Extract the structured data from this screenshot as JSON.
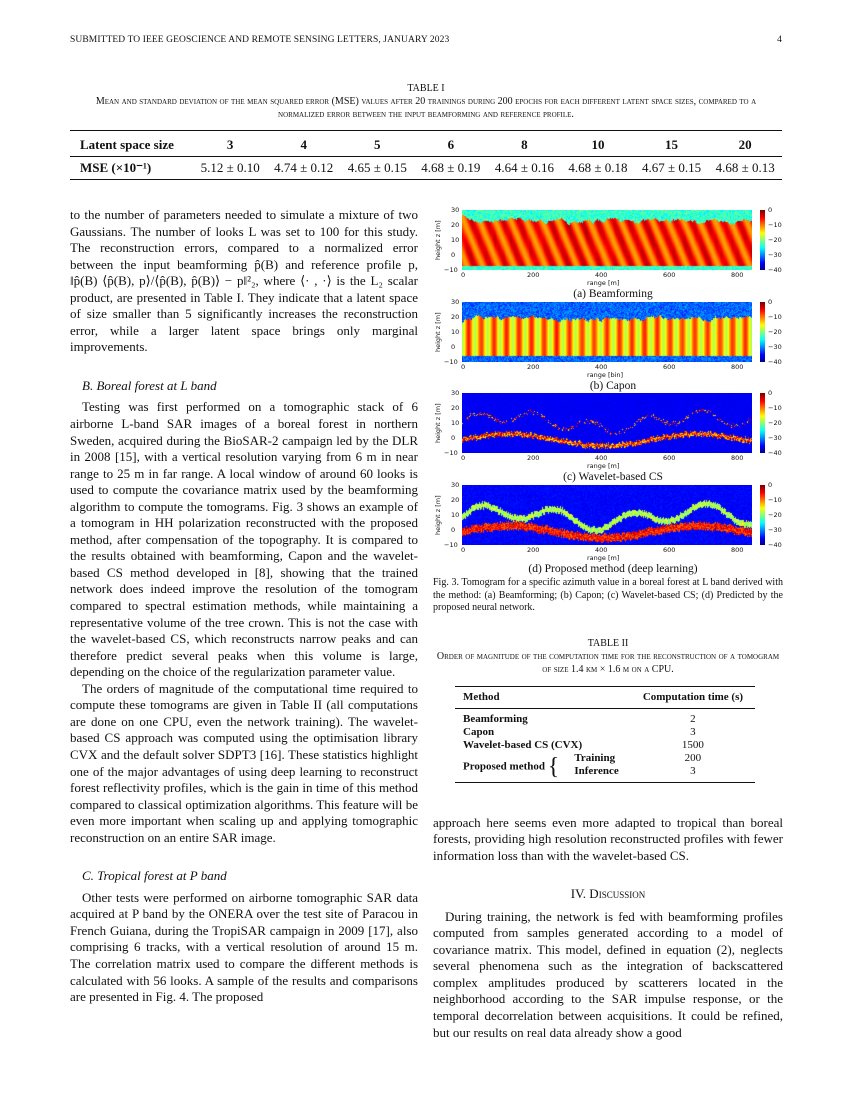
{
  "header": {
    "journal": "SUBMITTED TO IEEE GEOSCIENCE AND REMOTE SENSING LETTERS, JANUARY 2023",
    "page_number": "4"
  },
  "table1": {
    "label": "TABLE I",
    "caption": "Mean and standard deviation of the mean squared error (MSE) values after 20 trainings during 200 epochs for each different latent space sizes, compared to a normalized error between the input beamforming and reference profile.",
    "header": [
      "Latent space size",
      "3",
      "4",
      "5",
      "6",
      "8",
      "10",
      "15",
      "20"
    ],
    "row": [
      "MSE (×10⁻¹)",
      "5.12 ± 0.10",
      "4.74 ± 0.12",
      "4.65 ± 0.15",
      "4.68 ± 0.19",
      "4.64 ± 0.16",
      "4.68 ± 0.18",
      "4.67 ± 0.15",
      "4.68 ± 0.13"
    ]
  },
  "left": {
    "p1": "to the number of parameters needed to simulate a mixture of two Gaussians. The number of looks L was set to 100 for this study. The reconstruction errors, compared to a normalized error between the input beamforming p̂(B) and reference profile p, ‖p̂(B) ⟨p̂(B), p⟩/⟨p̂(B), p̂(B)⟩ − p‖²₂, where ⟨· , ·⟩ is the L₂ scalar product, are presented in Table I. They indicate that a latent space of size smaller than 5 significantly increases the reconstruction error, while a larger latent space brings only marginal improvements.",
    "secB": "B. Boreal forest at L band",
    "p2": "Testing was first performed on a tomographic stack of 6 airborne L-band SAR images of a boreal forest in northern Sweden, acquired during the BioSAR-2 campaign led by the DLR in 2008 [15], with a vertical resolution varying from 6 m in near range to 25 m in far range. A local window of around 60 looks is used to compute the covariance matrix used by the beamforming algorithm to compute the tomograms. Fig. 3 shows an example of a tomogram in HH polarization reconstructed with the proposed method, after compensation of the topography. It is compared to the results obtained with beamforming, Capon and the wavelet-based CS method developed in [8], showing that the trained network does indeed improve the resolution of the tomogram compared to spectral estimation methods, while maintaining a representative volume of the tree crown. This is not the case with the wavelet-based CS, which reconstructs narrow peaks and can therefore predict several peaks when this volume is large, depending on the choice of the regularization parameter value.",
    "p3": "The orders of magnitude of the computational time required to compute these tomograms are given in Table II (all computations are done on one CPU, even the network training). The wavelet-based CS approach was computed using the optimisation library CVX and the default solver SDPT3 [16]. These statistics highlight one of the major advantages of using deep learning to reconstruct forest reflectivity profiles, which is the gain in time of this method compared to classical optimization algorithms. This feature will be even more important when scaling up and applying tomographic reconstruction on an entire SAR image.",
    "secC": "C. Tropical forest at P band",
    "p4": "Other tests were performed on airborne tomographic SAR data acquired at P band by the ONERA over the test site of Paracou in French Guiana, during the TropiSAR campaign in 2009 [17], also comprising 6 tracks, with a vertical resolution of around 15 m. The correlation matrix used to compare the different methods is calculated with 56 looks. A sample of the results and comparisons are presented in Fig. 4. The proposed"
  },
  "figure": {
    "ylabel": "height z [m]",
    "yticks": [
      "30",
      "20",
      "10",
      "0",
      "−10"
    ],
    "xticks": [
      "0",
      "200",
      "400",
      "600",
      "800"
    ],
    "cticks": [
      "0",
      "−10",
      "−20",
      "−30",
      "−40"
    ],
    "panels": [
      {
        "xlabel": "range [m]",
        "caption": "(a) Beamforming"
      },
      {
        "xlabel": "range [bin]",
        "caption": "(b) Capon"
      },
      {
        "xlabel": "range [m]",
        "caption": "(c) Wavelet-based CS"
      },
      {
        "xlabel": "range [m]",
        "caption": "(d) Proposed method (deep learning)"
      }
    ],
    "caption": "Fig. 3.  Tomogram for a specific azimuth value in a boreal forest at L band derived with the method: (a) Beamforming; (b) Capon; (c) Wavelet-based CS; (d) Predicted by the proposed neural network.",
    "colormap": "jet"
  },
  "table2": {
    "label": "TABLE II",
    "caption": "Order of magnitude of the computation time for the reconstruction of a tomogram of size 1.4 km × 1.6 m on a CPU.",
    "header": [
      "Method",
      "Computation time (s)"
    ],
    "rows": [
      [
        "Beamforming",
        "2"
      ],
      [
        "Capon",
        "3"
      ],
      [
        "Wavelet-based CS (CVX)",
        "1500"
      ]
    ],
    "proposed": {
      "label": "Proposed method",
      "rows": [
        [
          "Training",
          "200"
        ],
        [
          "Inference",
          "3"
        ]
      ]
    }
  },
  "right": {
    "p1": "approach here seems even more adapted to tropical than boreal forests, providing high resolution reconstructed profiles with fewer information loss than with the wavelet-based CS.",
    "secIV": "IV. Discussion",
    "p2": "During training, the network is fed with beamforming profiles computed from samples generated according to a model of covariance matrix. This model, defined in equation (2), neglects several phenomena such as the integration of backscattered complex amplitudes produced by scatterers located in the neighborhood according to the SAR impulse response, or the temporal decorrelation between acquisitions. It could be refined, but our results on real data already show a good"
  }
}
